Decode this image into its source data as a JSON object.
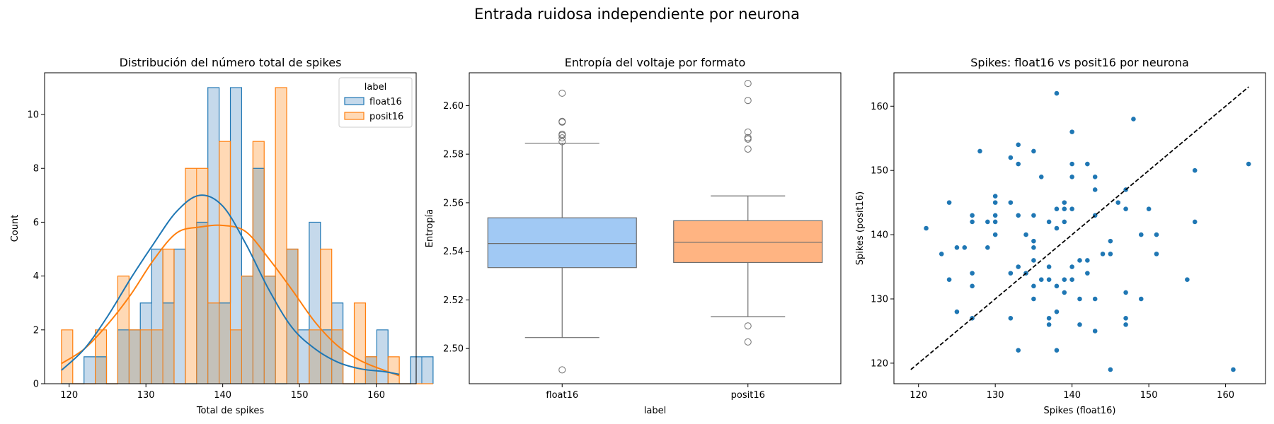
{
  "figure": {
    "suptitle": "Entrada ruidosa independiente por neurona"
  },
  "colors": {
    "float16": "#1f77b4",
    "posit16": "#ff7f0e",
    "float16_fill": "#c5d9eb",
    "posit16_fill": "#ffd9b5",
    "overlap_fill": "#c4c1b9",
    "box_float16": "#a1c9f4",
    "box_posit16": "#ffb482",
    "scatter": "#1f77b4",
    "diagonal": "#000000"
  },
  "chart_data": [
    {
      "type": "histogram",
      "title": "Distribución del número total de spikes",
      "xlabel": "Total de spikes",
      "ylabel": "Count",
      "xlim": [
        116.8,
        165.2
      ],
      "ylim": [
        0,
        11.55
      ],
      "xticks": [
        120,
        130,
        140,
        150,
        160
      ],
      "yticks": [
        0,
        2,
        4,
        6,
        8,
        10
      ],
      "legend": {
        "title": "label",
        "placement": "top-right",
        "entries": [
          "float16",
          "posit16"
        ]
      },
      "bin_start": 119,
      "bin_width": 1.4667,
      "series": [
        {
          "name": "float16",
          "counts": [
            0,
            0,
            1,
            1,
            0,
            2,
            2,
            3,
            5,
            3,
            5,
            0,
            6,
            11,
            3,
            11,
            4,
            8,
            4,
            0,
            5,
            2,
            6,
            2,
            3,
            0,
            0,
            1,
            2,
            0,
            0,
            1,
            1
          ]
        },
        {
          "name": "posit16",
          "counts": [
            2,
            0,
            0,
            2,
            0,
            4,
            2,
            2,
            2,
            5,
            0,
            8,
            8,
            3,
            9,
            2,
            4,
            9,
            4,
            11,
            5,
            0,
            2,
            5,
            2,
            0,
            3,
            1,
            0,
            1,
            0,
            0,
            0
          ]
        }
      ],
      "kde": [
        {
          "name": "posit16",
          "x": [
            119,
            122,
            125,
            128,
            131,
            134,
            137,
            140,
            143,
            146,
            149,
            152,
            155,
            158,
            161,
            163
          ],
          "y": [
            0.75,
            1.3,
            2.2,
            3.3,
            4.6,
            5.6,
            5.82,
            5.88,
            5.65,
            4.65,
            3.5,
            2.3,
            1.4,
            0.85,
            0.5,
            0.3
          ]
        },
        {
          "name": "float16",
          "x": [
            119,
            122,
            125,
            128,
            131,
            134,
            137,
            140,
            143,
            146,
            149,
            152,
            155,
            158,
            161,
            163
          ],
          "y": [
            0.5,
            1.3,
            2.5,
            3.9,
            5.2,
            6.4,
            7.0,
            6.6,
            5.2,
            3.5,
            2.1,
            1.3,
            0.8,
            0.55,
            0.45,
            0.35
          ]
        }
      ]
    },
    {
      "type": "box",
      "title": "Entropía del voltaje por formato",
      "xlabel": "label",
      "ylabel": "Entropía",
      "categories": [
        "float16",
        "posit16"
      ],
      "ylim": [
        2.4855,
        2.6135
      ],
      "yticks": [
        2.5,
        2.52,
        2.54,
        2.56,
        2.58,
        2.6
      ],
      "ytick_labels": [
        "2.50",
        "2.52",
        "2.54",
        "2.56",
        "2.58",
        "2.60"
      ],
      "boxes": [
        {
          "name": "float16",
          "whisker_low": 2.5045,
          "q1": 2.5333,
          "median": 2.5432,
          "q3": 2.5538,
          "whisker_high": 2.5845,
          "outliers": [
            2.6051,
            2.5935,
            2.5932,
            2.5882,
            2.5878,
            2.5867,
            2.5851,
            2.4912
          ]
        },
        {
          "name": "posit16",
          "whisker_low": 2.5131,
          "q1": 2.5354,
          "median": 2.5437,
          "q3": 2.5526,
          "whisker_high": 2.5628,
          "outliers": [
            2.6091,
            2.6021,
            2.5891,
            2.5868,
            2.5862,
            2.5821,
            2.5093,
            2.5027
          ]
        }
      ]
    },
    {
      "type": "scatter",
      "title": "Spikes: float16 vs posit16 por neurona",
      "xlabel": "Spikes (float16)",
      "ylabel": "Spikes (posit16)",
      "xlim": [
        116.8,
        165.2
      ],
      "ylim": [
        116.8,
        165.2
      ],
      "xticks": [
        120,
        130,
        140,
        150,
        160
      ],
      "yticks": [
        120,
        130,
        140,
        150,
        160
      ],
      "diagonal": {
        "from": [
          119,
          119
        ],
        "to": [
          163,
          163
        ],
        "style": "dashed"
      },
      "points": [
        [
          121,
          141
        ],
        [
          123,
          137
        ],
        [
          124,
          145
        ],
        [
          124,
          133
        ],
        [
          125,
          138
        ],
        [
          125,
          128
        ],
        [
          126,
          138
        ],
        [
          127,
          143
        ],
        [
          127,
          142
        ],
        [
          127,
          134
        ],
        [
          127,
          132
        ],
        [
          127,
          127
        ],
        [
          128,
          153
        ],
        [
          129,
          142
        ],
        [
          129,
          138
        ],
        [
          130,
          146
        ],
        [
          130,
          145
        ],
        [
          130,
          143
        ],
        [
          130,
          142
        ],
        [
          130,
          140
        ],
        [
          132,
          152
        ],
        [
          132,
          145
        ],
        [
          132,
          134
        ],
        [
          132,
          127
        ],
        [
          133,
          154
        ],
        [
          133,
          151
        ],
        [
          133,
          143
        ],
        [
          133,
          135
        ],
        [
          133,
          122
        ],
        [
          134,
          140
        ],
        [
          134,
          134
        ],
        [
          135,
          153
        ],
        [
          135,
          143
        ],
        [
          135,
          139
        ],
        [
          135,
          138
        ],
        [
          135,
          136
        ],
        [
          135,
          132
        ],
        [
          135,
          130
        ],
        [
          136,
          149
        ],
        [
          136,
          133
        ],
        [
          137,
          142
        ],
        [
          137,
          135
        ],
        [
          137,
          133
        ],
        [
          137,
          127
        ],
        [
          137,
          126
        ],
        [
          138,
          162
        ],
        [
          138,
          144
        ],
        [
          138,
          141
        ],
        [
          138,
          132
        ],
        [
          138,
          128
        ],
        [
          138,
          122
        ],
        [
          139,
          145
        ],
        [
          139,
          144
        ],
        [
          139,
          142
        ],
        [
          139,
          133
        ],
        [
          139,
          131
        ],
        [
          140,
          156
        ],
        [
          140,
          151
        ],
        [
          140,
          149
        ],
        [
          140,
          144
        ],
        [
          140,
          135
        ],
        [
          140,
          133
        ],
        [
          141,
          136
        ],
        [
          141,
          130
        ],
        [
          141,
          126
        ],
        [
          142,
          151
        ],
        [
          142,
          136
        ],
        [
          142,
          134
        ],
        [
          143,
          149
        ],
        [
          143,
          147
        ],
        [
          143,
          143
        ],
        [
          143,
          130
        ],
        [
          143,
          125
        ],
        [
          144,
          137
        ],
        [
          145,
          139
        ],
        [
          145,
          137
        ],
        [
          145,
          119
        ],
        [
          146,
          145
        ],
        [
          147,
          147
        ],
        [
          147,
          144
        ],
        [
          147,
          131
        ],
        [
          147,
          127
        ],
        [
          147,
          126
        ],
        [
          148,
          158
        ],
        [
          149,
          140
        ],
        [
          149,
          130
        ],
        [
          150,
          144
        ],
        [
          151,
          140
        ],
        [
          151,
          137
        ],
        [
          155,
          133
        ],
        [
          156,
          150
        ],
        [
          156,
          142
        ],
        [
          161,
          119
        ],
        [
          163,
          151
        ]
      ]
    }
  ]
}
